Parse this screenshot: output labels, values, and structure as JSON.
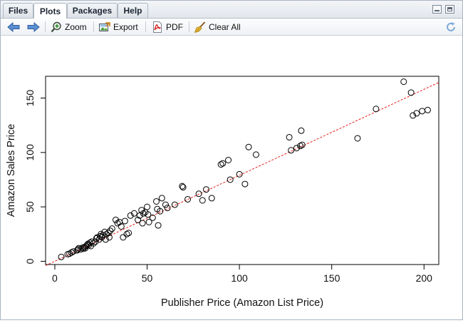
{
  "tabs": [
    {
      "label": "Files",
      "active": false
    },
    {
      "label": "Plots",
      "active": true
    },
    {
      "label": "Packages",
      "active": false
    },
    {
      "label": "Help",
      "active": false
    }
  ],
  "toolbar": {
    "back_icon": "arrow-left-icon",
    "forward_icon": "arrow-right-icon",
    "zoom_label": "Zoom",
    "export_label": "Export",
    "pdf_label": "PDF",
    "clear_all_label": "Clear All",
    "refresh_icon": "refresh-icon"
  },
  "chart_data": {
    "type": "scatter",
    "title": "",
    "xlabel": "Publisher Price (Amazon List Price)",
    "ylabel": "Amazon Sales Price",
    "xlim": [
      -5,
      208
    ],
    "ylim": [
      -3,
      170
    ],
    "xticks": [
      0,
      50,
      100,
      150,
      200
    ],
    "yticks": [
      0,
      50,
      100,
      150
    ],
    "grid": false,
    "marker": "open-circle",
    "fit_line": {
      "style": "dashed",
      "color": "#e8201a",
      "intercept": 0,
      "slope": 0.79
    },
    "points": [
      [
        3.5,
        4
      ],
      [
        7,
        6.5
      ],
      [
        8,
        7
      ],
      [
        9,
        8
      ],
      [
        10,
        9
      ],
      [
        12,
        10
      ],
      [
        12.5,
        11
      ],
      [
        13,
        12
      ],
      [
        14,
        11
      ],
      [
        15,
        12.5
      ],
      [
        15.5,
        11.5
      ],
      [
        16,
        13
      ],
      [
        16.5,
        12
      ],
      [
        17,
        14
      ],
      [
        17.5,
        15
      ],
      [
        18,
        16
      ],
      [
        18.5,
        15
      ],
      [
        19,
        17
      ],
      [
        19.5,
        14
      ],
      [
        20,
        18
      ],
      [
        21,
        16.5
      ],
      [
        22,
        18
      ],
      [
        22.5,
        21
      ],
      [
        23,
        22
      ],
      [
        24,
        20
      ],
      [
        24.5,
        23
      ],
      [
        25,
        25
      ],
      [
        25.5,
        22
      ],
      [
        26,
        24
      ],
      [
        27,
        27
      ],
      [
        27.5,
        20
      ],
      [
        28,
        25
      ],
      [
        29,
        26
      ],
      [
        29.5,
        22
      ],
      [
        30,
        28
      ],
      [
        31,
        30
      ],
      [
        33,
        38
      ],
      [
        34,
        35
      ],
      [
        35,
        36
      ],
      [
        36,
        32
      ],
      [
        37,
        22
      ],
      [
        38,
        37
      ],
      [
        39,
        25
      ],
      [
        40,
        26
      ],
      [
        41,
        42
      ],
      [
        43,
        44
      ],
      [
        45,
        38
      ],
      [
        46,
        42
      ],
      [
        47,
        47
      ],
      [
        47.5,
        35
      ],
      [
        48,
        44
      ],
      [
        49,
        45
      ],
      [
        50,
        50
      ],
      [
        50.5,
        43
      ],
      [
        51,
        36
      ],
      [
        53,
        40
      ],
      [
        55,
        55
      ],
      [
        55.5,
        48
      ],
      [
        56,
        33
      ],
      [
        57,
        46
      ],
      [
        58,
        58
      ],
      [
        60,
        52
      ],
      [
        61,
        49
      ],
      [
        65,
        52
      ],
      [
        69,
        69
      ],
      [
        69.5,
        68
      ],
      [
        72,
        57
      ],
      [
        78,
        62
      ],
      [
        80,
        56
      ],
      [
        82,
        66
      ],
      [
        85,
        58
      ],
      [
        90,
        89
      ],
      [
        91,
        90
      ],
      [
        94,
        93
      ],
      [
        95,
        75
      ],
      [
        100,
        80
      ],
      [
        103,
        71
      ],
      [
        105,
        105
      ],
      [
        109,
        98
      ],
      [
        127,
        114
      ],
      [
        128,
        102
      ],
      [
        131,
        104
      ],
      [
        133,
        106
      ],
      [
        133.5,
        120
      ],
      [
        134,
        107
      ],
      [
        164,
        113
      ],
      [
        174,
        140
      ],
      [
        189,
        165
      ],
      [
        193,
        155
      ],
      [
        194,
        134
      ],
      [
        196,
        136
      ],
      [
        199,
        138
      ],
      [
        202,
        139
      ]
    ]
  }
}
